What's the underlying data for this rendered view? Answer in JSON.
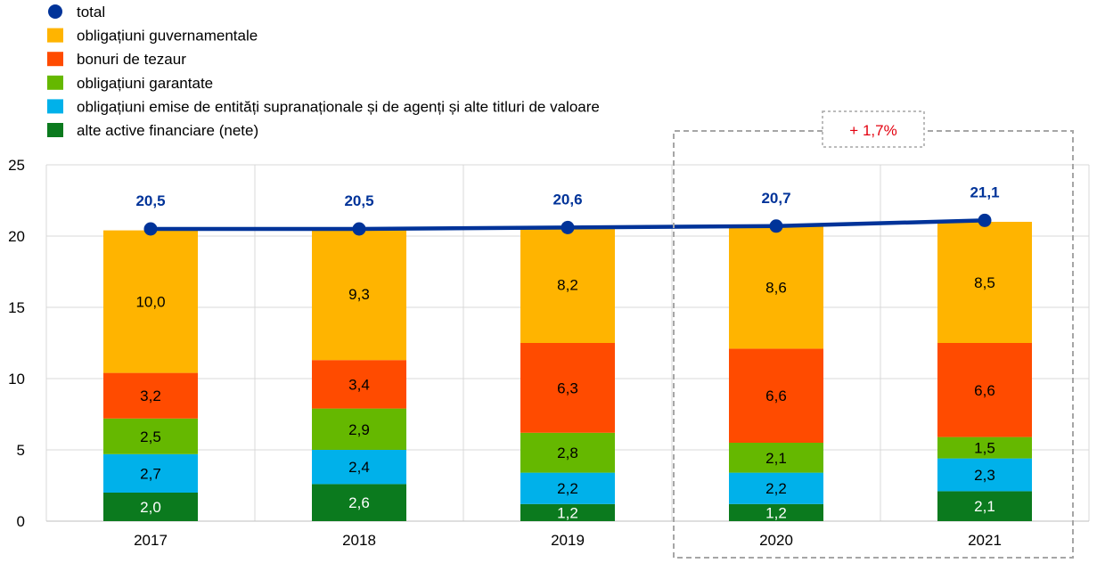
{
  "chart_data": {
    "type": "bar",
    "stacked": true,
    "categories": [
      "2017",
      "2018",
      "2019",
      "2020",
      "2021"
    ],
    "ylim": [
      0,
      25
    ],
    "yticks": [
      0,
      5,
      10,
      15,
      20,
      25
    ],
    "grid": true,
    "legend_position": "top-left",
    "series": [
      {
        "name": "alte active financiare (nete)",
        "color": "#0b7a1e",
        "label_color": "#ffffff",
        "values": [
          2.0,
          2.6,
          1.2,
          1.2,
          2.1
        ],
        "labels": [
          "2,0",
          "2,6",
          "1,2",
          "1,2",
          "2,1"
        ]
      },
      {
        "name": "obligațiuni emise de entități supranaționale și de agenți și alte titluri de valoare",
        "color": "#00b1ea",
        "label_color": "#000000",
        "values": [
          2.7,
          2.4,
          2.2,
          2.2,
          2.3
        ],
        "labels": [
          "2,7",
          "2,4",
          "2,2",
          "2,2",
          "2,3"
        ]
      },
      {
        "name": "obligațiuni garantate",
        "color": "#65b800",
        "label_color": "#000000",
        "values": [
          2.5,
          2.9,
          2.8,
          2.1,
          1.5
        ],
        "labels": [
          "2,5",
          "2,9",
          "2,8",
          "2,1",
          "1,5"
        ]
      },
      {
        "name": "bonuri de tezaur",
        "color": "#ff4b00",
        "label_color": "#000000",
        "values": [
          3.2,
          3.4,
          6.3,
          6.6,
          6.6
        ],
        "labels": [
          "3,2",
          "3,4",
          "6,3",
          "6,6",
          "6,6"
        ]
      },
      {
        "name": "obligațiuni guvernamentale",
        "color": "#ffb400",
        "label_color": "#000000",
        "values": [
          10.0,
          9.3,
          8.2,
          8.6,
          8.5
        ],
        "labels": [
          "10,0",
          "9,3",
          "8,2",
          "8,6",
          "8,5"
        ]
      }
    ],
    "total": {
      "name": "total",
      "color": "#003399",
      "values": [
        20.5,
        20.5,
        20.6,
        20.7,
        21.1
      ],
      "labels": [
        "20,5",
        "20,5",
        "20,6",
        "20,7",
        "21,1"
      ]
    },
    "legend": [
      {
        "name": "total",
        "marker": "circle",
        "color": "#003399"
      },
      {
        "name": "obligațiuni guvernamentale",
        "marker": "square",
        "color": "#ffb400"
      },
      {
        "name": "bonuri de tezaur",
        "marker": "square",
        "color": "#ff4b00"
      },
      {
        "name": "obligațiuni garantate",
        "marker": "square",
        "color": "#65b800"
      },
      {
        "name": "obligațiuni emise de entități supranaționale și de agenți și alte titluri de valoare",
        "marker": "square",
        "color": "#00b1ea"
      },
      {
        "name": "alte active financiare (nete)",
        "marker": "square",
        "color": "#0b7a1e"
      }
    ],
    "annotation": {
      "text": "+ 1,7%",
      "color": "#e3000f",
      "spans_categories": [
        "2020",
        "2021"
      ]
    }
  }
}
